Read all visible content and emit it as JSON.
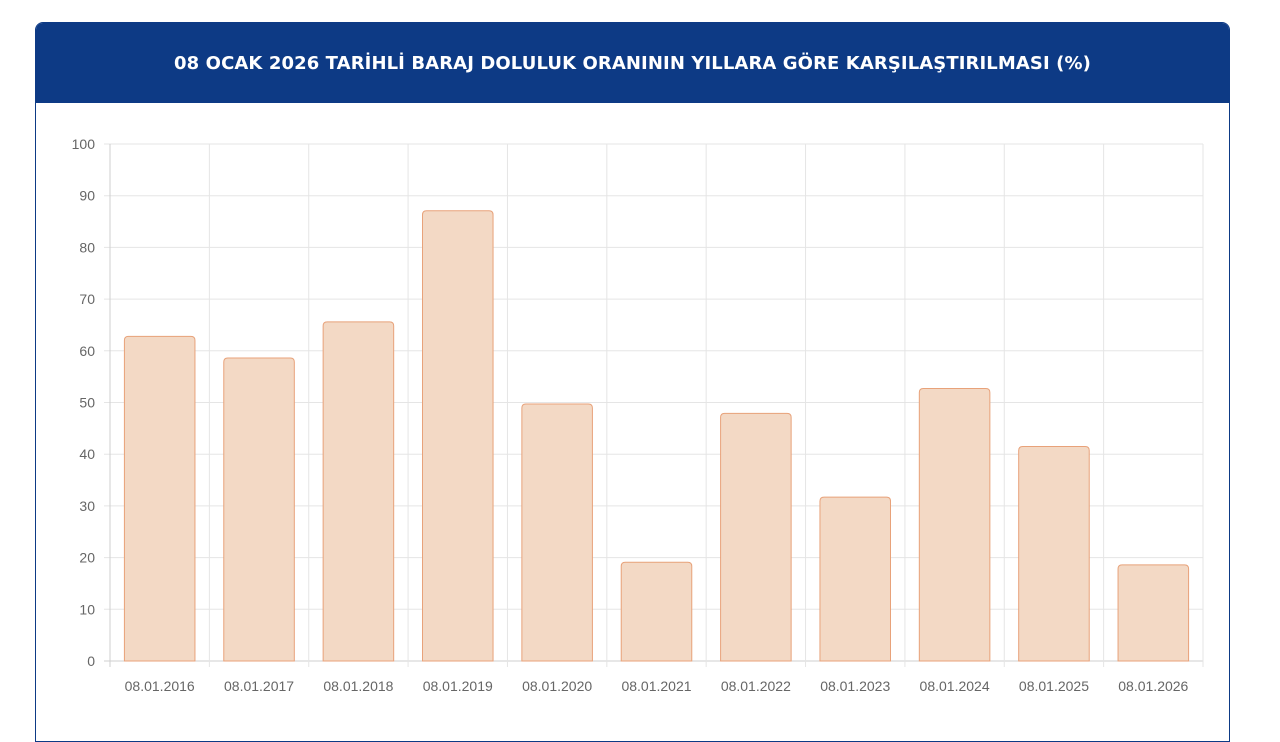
{
  "chart_data": {
    "type": "bar",
    "title": "08 OCAK 2026 TARİHLİ BARAJ DOLULUK ORANININ YILLARA GÖRE KARŞILAŞTIRILMASI (%)",
    "xlabel": "",
    "ylabel": "",
    "categories": [
      "08.01.2016",
      "08.01.2017",
      "08.01.2018",
      "08.01.2019",
      "08.01.2020",
      "08.01.2021",
      "08.01.2022",
      "08.01.2023",
      "08.01.2024",
      "08.01.2025",
      "08.01.2026"
    ],
    "values": [
      62.8,
      58.6,
      65.6,
      87.1,
      49.7,
      19.1,
      47.9,
      31.7,
      52.7,
      41.5,
      18.6
    ],
    "ylim": [
      0,
      100
    ],
    "yticks": [
      "0",
      "10",
      "20",
      "30",
      "40",
      "50",
      "60",
      "70",
      "80",
      "90",
      "100"
    ],
    "grid": true,
    "colors": {
      "header_bg": "#0d3a85",
      "bar_fill": "#f3d9c5",
      "bar_stroke": "#e8a27a",
      "grid": "#e5e5e5"
    }
  }
}
